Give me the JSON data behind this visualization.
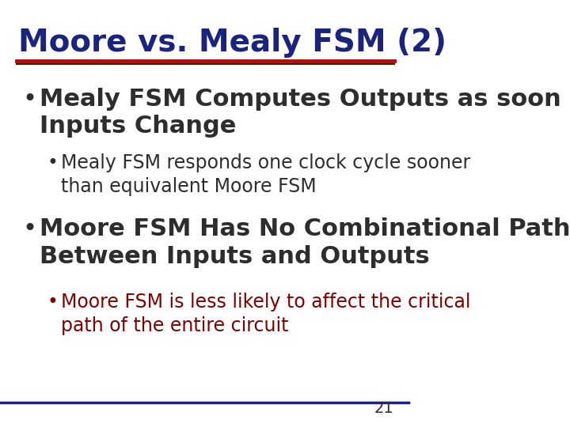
{
  "title": "Moore vs. Mealy FSM (2)",
  "title_color": "#1a237e",
  "title_fontsize": 28,
  "bg_color": "#ffffff",
  "red_line_color": "#cc0000",
  "dark_line_color": "#3e2000",
  "blue_line_color": "#1a237e",
  "bullet1_text_line1": "Mealy FSM Computes Outputs as soon as",
  "bullet1_text_line2": "Inputs Change",
  "bullet1_color": "#2d2d2d",
  "bullet1_fontsize": 22,
  "sub_bullet1_text_line1": "Mealy FSM responds one clock cycle sooner",
  "sub_bullet1_text_line2": "than equivalent Moore FSM",
  "sub_bullet1_color": "#2d2d2d",
  "sub_bullet1_fontsize": 17,
  "bullet2_text_line1": "Moore FSM Has No Combinational Path",
  "bullet2_text_line2": "Between Inputs and Outputs",
  "bullet2_color": "#2d2d2d",
  "bullet2_fontsize": 22,
  "sub_bullet2_text_line1": "Moore FSM is less likely to affect the critical",
  "sub_bullet2_text_line2": "path of the entire circuit",
  "sub_bullet2_color": "#800000",
  "sub_bullet2_fontsize": 17,
  "page_number": "21",
  "page_number_color": "#2d2d2d",
  "page_number_fontsize": 14
}
